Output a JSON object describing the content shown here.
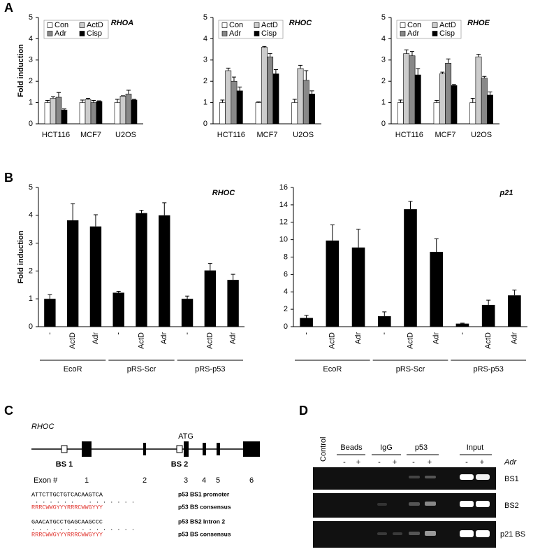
{
  "panel_labels": [
    "A",
    "B",
    "C",
    "D"
  ],
  "chart_data": [
    {
      "type": "grouped_bar",
      "title": "RHOA",
      "ylabel": "Fold induction",
      "categories": [
        "HCT116",
        "MCF7",
        "U2OS"
      ],
      "series": [
        {
          "name": "Con",
          "color": "#ffffff",
          "values": [
            1,
            1,
            1
          ],
          "errors": [
            0.1,
            0.12,
            0.15
          ]
        },
        {
          "name": "ActD",
          "color": "#cccccc",
          "values": [
            1.2,
            1.15,
            1.3
          ],
          "errors": [
            0.08,
            0.05,
            0.02
          ]
        },
        {
          "name": "Adr",
          "color": "#888888",
          "values": [
            1.25,
            1.0,
            1.4
          ],
          "errors": [
            0.22,
            0.1,
            0.18
          ]
        },
        {
          "name": "Cisp",
          "color": "#000000",
          "values": [
            0.65,
            1.05,
            1.12
          ],
          "errors": [
            0.05,
            0.03,
            0.03
          ]
        }
      ],
      "ylim": [
        0,
        5
      ],
      "yticks": [
        0,
        1,
        2,
        3,
        4,
        5
      ],
      "legend": "upper left"
    },
    {
      "type": "grouped_bar",
      "title": "RHOC",
      "categories": [
        "HCT116",
        "MCF7",
        "U2OS"
      ],
      "series": [
        {
          "name": "Con",
          "color": "#ffffff",
          "values": [
            1,
            1,
            1
          ],
          "errors": [
            0.12,
            0.03,
            0.15
          ]
        },
        {
          "name": "ActD",
          "color": "#cccccc",
          "values": [
            2.5,
            3.6,
            2.6
          ],
          "errors": [
            0.12,
            0.04,
            0.15
          ]
        },
        {
          "name": "Adr",
          "color": "#888888",
          "values": [
            2.0,
            3.15,
            2.05
          ],
          "errors": [
            0.2,
            0.15,
            0.45
          ]
        },
        {
          "name": "Cisp",
          "color": "#000000",
          "values": [
            1.55,
            2.35,
            1.4
          ],
          "errors": [
            0.18,
            0.2,
            0.15
          ]
        }
      ],
      "ylim": [
        0,
        5
      ],
      "yticks": [
        0,
        1,
        2,
        3,
        4,
        5
      ],
      "legend": "upper left"
    },
    {
      "type": "grouped_bar",
      "title": "RHOE",
      "categories": [
        "HCT116",
        "MCF7",
        "U2OS"
      ],
      "series": [
        {
          "name": "Con",
          "color": "#ffffff",
          "values": [
            1,
            1,
            1
          ],
          "errors": [
            0.12,
            0.1,
            0.2
          ]
        },
        {
          "name": "ActD",
          "color": "#cccccc",
          "values": [
            3.3,
            2.35,
            3.15
          ],
          "errors": [
            0.18,
            0.08,
            0.12
          ]
        },
        {
          "name": "Adr",
          "color": "#888888",
          "values": [
            3.2,
            2.85,
            2.15
          ],
          "errors": [
            0.2,
            0.2,
            0.08
          ]
        },
        {
          "name": "Cisp",
          "color": "#000000",
          "values": [
            2.3,
            1.8,
            1.35
          ],
          "errors": [
            0.3,
            0.05,
            0.15
          ]
        }
      ],
      "ylim": [
        0,
        5
      ],
      "yticks": [
        0,
        1,
        2,
        3,
        4,
        5
      ],
      "legend": "upper left"
    },
    {
      "type": "bar",
      "title": "RHOC",
      "ylabel": "Fold induction",
      "color": "#000000",
      "categories": [
        "-",
        "ActD",
        "Adr",
        "-",
        "ActD",
        "Adr",
        "-",
        "ActD",
        "Adr"
      ],
      "groups": [
        "EcoR",
        "pRS-Scr",
        "pRS-p53"
      ],
      "values": [
        1.0,
        3.82,
        3.6,
        1.22,
        4.08,
        4.0,
        1.0,
        2.02,
        1.68
      ],
      "errors": [
        0.15,
        0.6,
        0.42,
        0.05,
        0.1,
        0.45,
        0.1,
        0.25,
        0.2
      ],
      "ylim": [
        0,
        5
      ],
      "yticks": [
        0,
        1,
        2,
        3,
        4,
        5
      ]
    },
    {
      "type": "bar",
      "title": "p21",
      "color": "#000000",
      "categories": [
        "-",
        "ActD",
        "Adr",
        "-",
        "ActD",
        "Adr",
        "-",
        "ActD",
        "Adr"
      ],
      "groups": [
        "EcoR",
        "pRS-Scr",
        "pRS-p53"
      ],
      "values": [
        1.0,
        9.9,
        9.1,
        1.2,
        13.5,
        8.6,
        0.35,
        2.5,
        3.6
      ],
      "errors": [
        0.3,
        1.8,
        2.1,
        0.5,
        0.9,
        1.5,
        0.05,
        0.55,
        0.6
      ],
      "ylim": [
        0,
        16
      ],
      "yticks": [
        0,
        2,
        4,
        6,
        8,
        10,
        12,
        14,
        16
      ]
    }
  ],
  "gene_diagram": {
    "title": "RHOC",
    "atg": "ATG",
    "sites": [
      "BS 1",
      "BS 2"
    ],
    "exon_label": "Exon #",
    "exons": [
      "1",
      "2",
      "3",
      "4",
      "5",
      "6"
    ],
    "alignments": [
      {
        "sequence": "ATTCTTGCTGTCACAAGTCA",
        "matches": " . . . . . .    . . . . . . .",
        "consensus": "RRRCWWGYYYRRRCWWGYYY",
        "sequence_label": "p53 BS1 promoter",
        "consensus_label": "p53 BS consensus"
      },
      {
        "sequence": "GAACATGCCTGAGCAAGCCC",
        "matches": ". . . . . . . . . . . . . . .",
        "consensus": "RRRCWWGYYYRRRCWWGYYY",
        "sequence_label": "p53 BS2 Intron 2",
        "consensus_label": "p53 BS consensus"
      }
    ]
  },
  "gel": {
    "lanes": [
      "Control",
      "Beads",
      "IgG",
      "p53",
      "Input"
    ],
    "treatment_signs": [
      "-",
      "+",
      "-",
      "+",
      "-",
      "+",
      "-",
      "+"
    ],
    "treatment": "Adr",
    "rows": [
      "BS1",
      "BS2",
      "p21 BS"
    ]
  }
}
